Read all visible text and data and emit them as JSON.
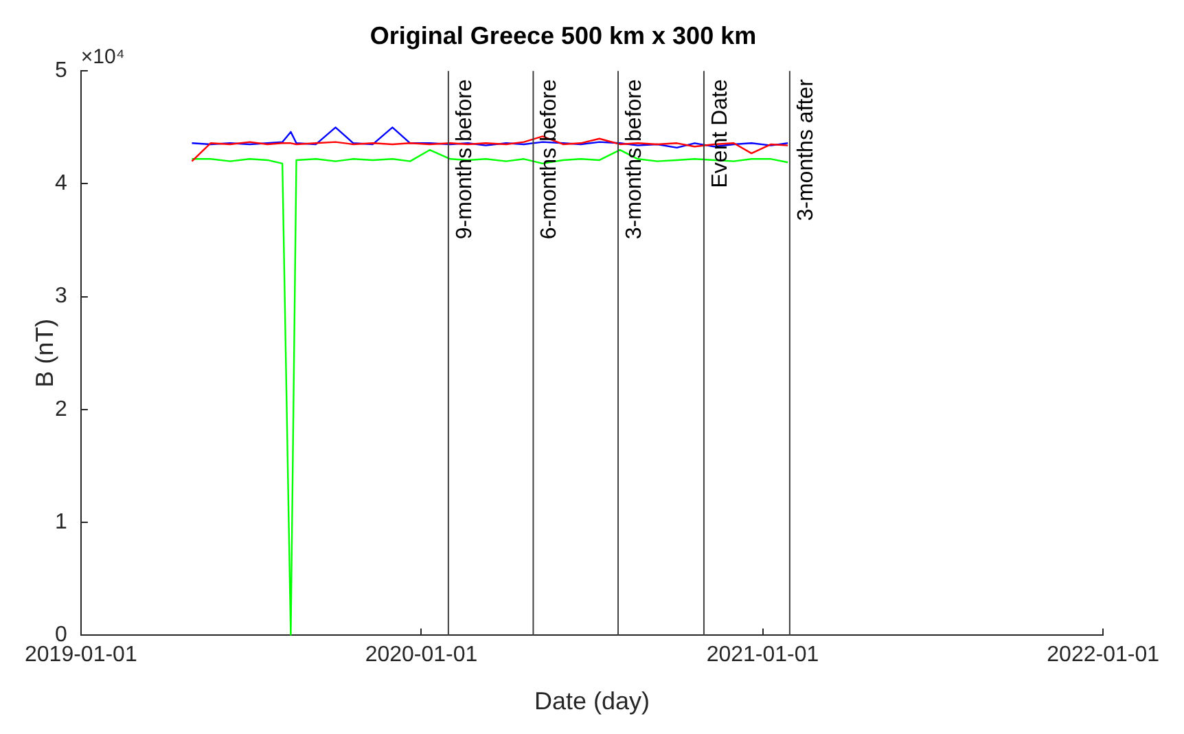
{
  "chart_data": {
    "type": "line",
    "title": "Original Greece 500 km x 300 km",
    "xlabel": "Date (day)",
    "ylabel": "B (nT)",
    "annotations": [
      "×10⁴"
    ],
    "x": [
      "2019-04-30",
      "2019-05-20",
      "2019-06-10",
      "2019-07-01",
      "2019-07-20",
      "2019-08-05",
      "2019-08-14",
      "2019-08-20",
      "2019-09-10",
      "2019-10-01",
      "2019-10-20",
      "2019-11-10",
      "2019-12-01",
      "2019-12-20",
      "2020-01-10",
      "2020-02-01",
      "2020-02-20",
      "2020-03-10",
      "2020-04-01",
      "2020-04-20",
      "2020-05-10",
      "2020-06-01",
      "2020-06-20",
      "2020-07-10",
      "2020-08-01",
      "2020-08-20",
      "2020-09-10",
      "2020-10-01",
      "2020-10-20",
      "2020-11-10",
      "2020-12-01",
      "2020-12-20",
      "2021-01-10",
      "2021-01-28"
    ],
    "series": [
      {
        "color": "#ff0000",
        "values": [
          4.2,
          4.36,
          4.35,
          4.37,
          4.35,
          4.36,
          4.36,
          4.35,
          4.36,
          4.37,
          4.35,
          4.36,
          4.35,
          4.36,
          4.35,
          4.36,
          4.35,
          4.36,
          4.35,
          4.37,
          4.42,
          4.35,
          4.36,
          4.4,
          4.35,
          4.36,
          4.35,
          4.36,
          4.33,
          4.35,
          4.36,
          4.27,
          4.35,
          4.34
        ]
      },
      {
        "color": "#0000ff",
        "values": [
          4.36,
          4.35,
          4.36,
          4.35,
          4.36,
          4.37,
          4.46,
          4.36,
          4.35,
          4.5,
          4.36,
          4.35,
          4.5,
          4.36,
          4.36,
          4.35,
          4.36,
          4.34,
          4.36,
          4.35,
          4.37,
          4.36,
          4.35,
          4.37,
          4.36,
          4.34,
          4.35,
          4.32,
          4.36,
          4.33,
          4.35,
          4.36,
          4.34,
          4.36
        ]
      },
      {
        "color": "#00ff00",
        "values": [
          4.22,
          4.22,
          4.2,
          4.22,
          4.21,
          4.18,
          0,
          4.21,
          4.22,
          4.2,
          4.22,
          4.21,
          4.22,
          4.2,
          4.3,
          4.22,
          4.21,
          4.22,
          4.2,
          4.22,
          4.18,
          4.21,
          4.22,
          4.21,
          4.3,
          4.22,
          4.2,
          4.21,
          4.22,
          4.21,
          4.2,
          4.22,
          4.22,
          4.19
        ]
      }
    ],
    "xlim": [
      "2019-01-01",
      "2022-01-01"
    ],
    "xticks": [
      "2019-01-01",
      "2020-01-01",
      "2021-01-01",
      "2022-01-01"
    ],
    "ylim": [
      0,
      5
    ],
    "yticks": [
      0,
      1,
      2,
      3,
      4,
      5
    ],
    "ref_lines": [
      {
        "axis": "x",
        "value": "2020-01-30",
        "label": "9-months before",
        "color": "#404040"
      },
      {
        "axis": "x",
        "value": "2020-04-30",
        "label": "6-months before",
        "color": "#404040"
      },
      {
        "axis": "x",
        "value": "2020-07-30",
        "label": "3-months before",
        "color": "#404040"
      },
      {
        "axis": "x",
        "value": "2020-10-30",
        "label": "Event Date",
        "color": "#404040"
      },
      {
        "axis": "x",
        "value": "2021-01-30",
        "label": "3-months after",
        "color": "#404040"
      }
    ],
    "grid": false,
    "legend": false,
    "marker": "none",
    "line_style": "solid"
  }
}
